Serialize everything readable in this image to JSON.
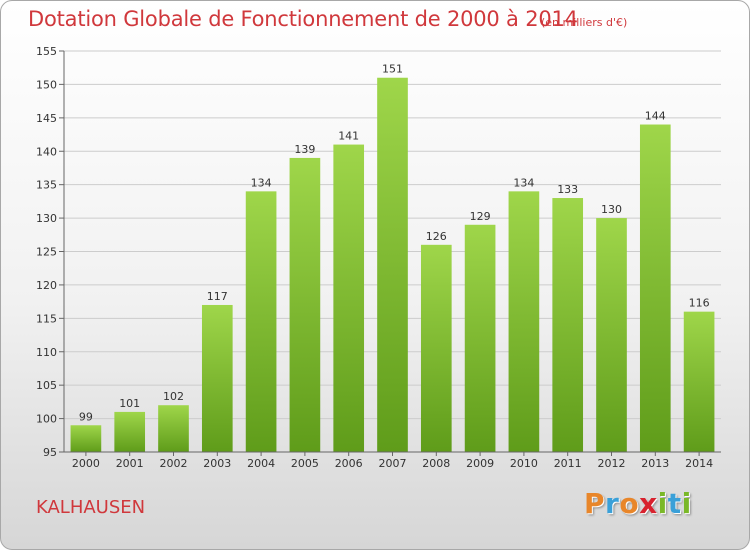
{
  "title": "Dotation Globale de Fonctionnement de 2000 à 2014",
  "subtitle": "(en milliers d'€)",
  "commune": "KALHAUSEN",
  "logo": {
    "letters": [
      "P",
      "r",
      "o",
      "x",
      "i",
      "t",
      "i"
    ],
    "colors": [
      "#e8862a",
      "#3aa0d8",
      "#e8862a",
      "#d8222e",
      "#7ab828",
      "#3aa0d8",
      "#7ab828"
    ]
  },
  "colors": {
    "title": "#d0383c",
    "bar_light": "#9fd64a",
    "bar_dark": "#5f9c1a",
    "grid": "#cccccc"
  },
  "chart_data": {
    "type": "bar",
    "title": "Dotation Globale de Fonctionnement de 2000 à 2014",
    "subtitle": "(en milliers d'€)",
    "categories": [
      "2000",
      "2001",
      "2002",
      "2003",
      "2004",
      "2005",
      "2006",
      "2007",
      "2008",
      "2009",
      "2010",
      "2011",
      "2012",
      "2013",
      "2014"
    ],
    "values": [
      99,
      101,
      102,
      117,
      134,
      139,
      141,
      151,
      126,
      129,
      134,
      133,
      130,
      144,
      116
    ],
    "ylim": [
      95,
      155
    ],
    "yticks": [
      95,
      100,
      105,
      110,
      115,
      120,
      125,
      130,
      135,
      140,
      145,
      150,
      155
    ],
    "grid": true,
    "xlabel": "",
    "ylabel": ""
  }
}
